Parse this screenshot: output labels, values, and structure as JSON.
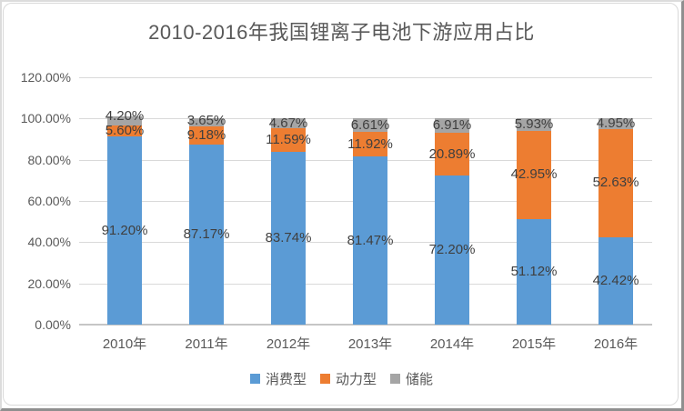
{
  "chart_data": {
    "type": "bar",
    "stacked": true,
    "title": "2010-2016年我国锂离子电池下游应用占比",
    "categories": [
      "2010年",
      "2011年",
      "2012年",
      "2013年",
      "2014年",
      "2015年",
      "2016年"
    ],
    "series": [
      {
        "name": "消费型",
        "color": "#5B9BD5",
        "values": [
          91.2,
          87.17,
          83.74,
          81.47,
          72.2,
          51.12,
          42.42
        ],
        "labels": [
          "91.20%",
          "87.17%",
          "83.74%",
          "81.47%",
          "72.20%",
          "51.12%",
          "42.42%"
        ]
      },
      {
        "name": "动力型",
        "color": "#ED7D31",
        "values": [
          5.6,
          9.18,
          11.59,
          11.92,
          20.89,
          42.95,
          52.63
        ],
        "labels": [
          "5.60%",
          "9.18%",
          "11.59%",
          "11.92%",
          "20.89%",
          "42.95%",
          "52.63%"
        ]
      },
      {
        "name": "储能",
        "color": "#A5A5A5",
        "values": [
          4.2,
          3.65,
          4.67,
          6.61,
          6.91,
          5.93,
          4.95
        ],
        "labels": [
          "4.20%",
          "3.65%",
          "4.67%",
          "6.61%",
          "6.91%",
          "5.93%",
          "4.95%"
        ]
      }
    ],
    "xlabel": "",
    "ylabel": "",
    "ylim": [
      0,
      120
    ],
    "y_ticks": [
      {
        "value": 0,
        "label": "0.00%"
      },
      {
        "value": 20,
        "label": "20.00%"
      },
      {
        "value": 40,
        "label": "40.00%"
      },
      {
        "value": 60,
        "label": "60.00%"
      },
      {
        "value": 80,
        "label": "80.00%"
      },
      {
        "value": 100,
        "label": "100.00%"
      },
      {
        "value": 120,
        "label": "120.00%"
      }
    ],
    "grid": true,
    "legend_position": "bottom"
  }
}
